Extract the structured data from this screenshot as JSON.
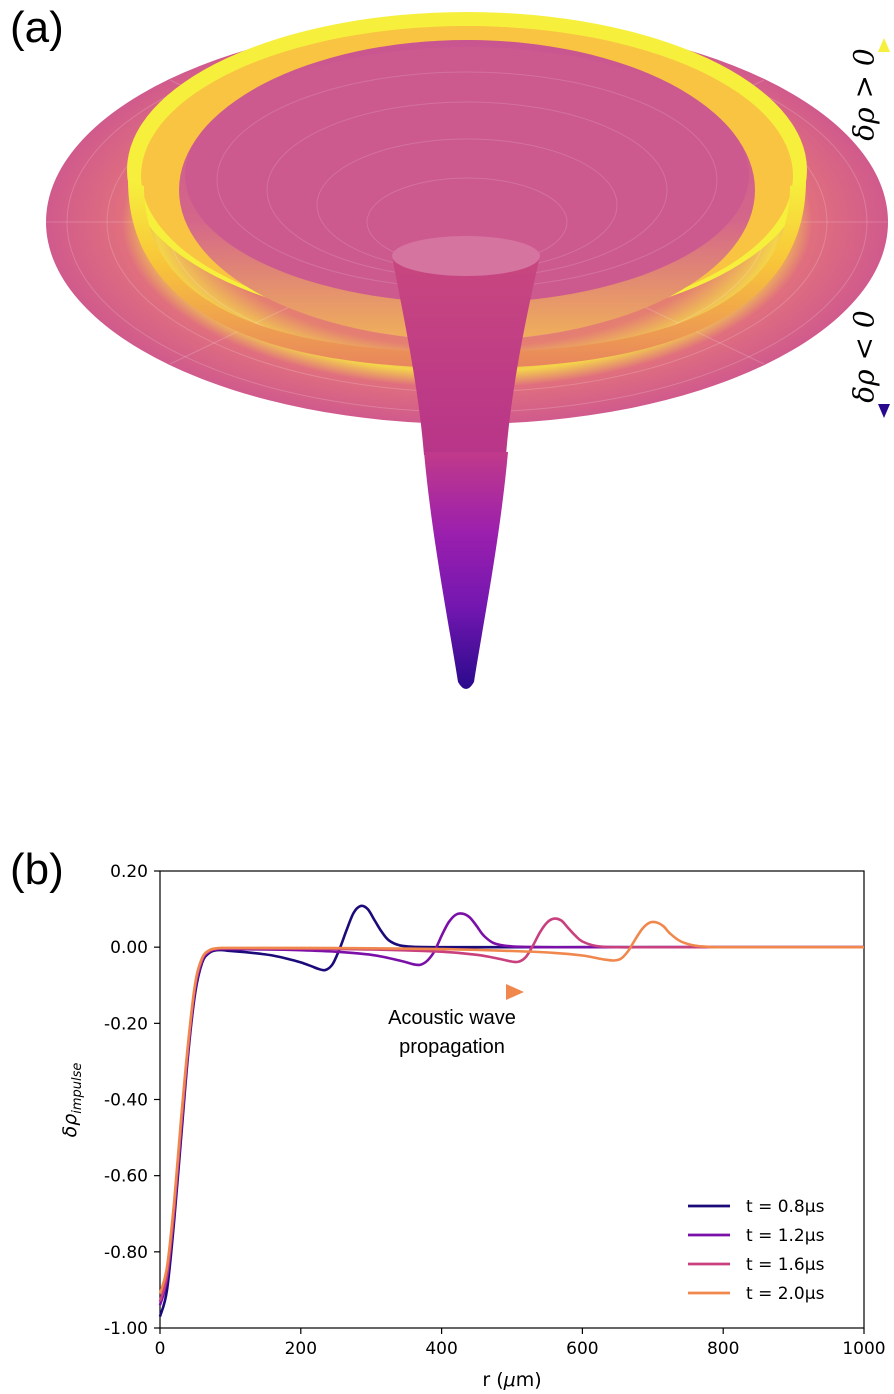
{
  "figure": {
    "panel_a": {
      "label": "(a)",
      "positive_label": "δρ > 0",
      "negative_label": "δρ < 0",
      "colors": {
        "rim_yellow": "#f6f03c",
        "surface_pink": "#d3628c",
        "deep_purple": "#8a16b0",
        "deep_blue": "#2a0a8c",
        "orange": "#f0922e"
      }
    },
    "panel_b": {
      "label": "(b)"
    }
  },
  "chart_data": {
    "type": "line",
    "title": "",
    "xlabel": "r (μm)",
    "ylabel": "δρimpulse",
    "xlim": [
      0,
      1000
    ],
    "ylim": [
      -1.0,
      0.2
    ],
    "x_ticks": [
      "0",
      "200",
      "400",
      "600",
      "800",
      "1000"
    ],
    "y_ticks": [
      "0.20",
      "0.00",
      "-0.20",
      "-0.40",
      "-0.60",
      "-0.80",
      "-1.00"
    ],
    "grid": false,
    "legend_position": "lower-right",
    "annotation": {
      "line1": "Acoustic wave",
      "line2": "propagation"
    },
    "series": [
      {
        "name": "t = 0.8μs",
        "color": "#1b0b7a",
        "x": [
          0,
          10,
          20,
          30,
          40,
          50,
          60,
          70,
          80,
          90,
          100,
          120,
          140,
          160,
          180,
          200,
          215,
          225,
          235,
          245,
          255,
          265,
          275,
          285,
          295,
          305,
          315,
          325,
          340,
          360,
          400,
          500,
          600,
          800,
          1000
        ],
        "y": [
          -0.97,
          -0.9,
          -0.72,
          -0.5,
          -0.28,
          -0.12,
          -0.04,
          -0.015,
          -0.008,
          -0.008,
          -0.01,
          -0.013,
          -0.017,
          -0.022,
          -0.03,
          -0.04,
          -0.05,
          -0.057,
          -0.06,
          -0.045,
          -0.005,
          0.045,
          0.09,
          0.108,
          0.1,
          0.07,
          0.04,
          0.018,
          0.005,
          0.001,
          0,
          0,
          0,
          0,
          0
        ]
      },
      {
        "name": "t = 1.2μs",
        "color": "#7b10a8",
        "x": [
          0,
          10,
          20,
          30,
          40,
          50,
          60,
          70,
          80,
          90,
          100,
          150,
          200,
          250,
          300,
          340,
          360,
          370,
          380,
          390,
          400,
          410,
          420,
          430,
          440,
          450,
          460,
          475,
          500,
          550,
          600,
          800,
          1000
        ],
        "y": [
          -0.94,
          -0.87,
          -0.7,
          -0.48,
          -0.27,
          -0.11,
          -0.035,
          -0.012,
          -0.006,
          -0.005,
          -0.005,
          -0.006,
          -0.008,
          -0.012,
          -0.02,
          -0.035,
          -0.045,
          -0.046,
          -0.035,
          -0.01,
          0.03,
          0.065,
          0.085,
          0.088,
          0.078,
          0.055,
          0.03,
          0.01,
          0.002,
          0,
          0,
          0,
          0
        ]
      },
      {
        "name": "t = 1.6μs",
        "color": "#c8407d",
        "x": [
          0,
          10,
          20,
          30,
          40,
          50,
          60,
          70,
          80,
          90,
          100,
          200,
          300,
          400,
          450,
          480,
          500,
          510,
          520,
          530,
          540,
          550,
          560,
          570,
          580,
          590,
          600,
          620,
          650,
          700,
          800,
          1000
        ],
        "y": [
          -0.93,
          -0.86,
          -0.69,
          -0.47,
          -0.26,
          -0.1,
          -0.03,
          -0.01,
          -0.004,
          -0.003,
          -0.003,
          -0.004,
          -0.006,
          -0.012,
          -0.02,
          -0.03,
          -0.038,
          -0.038,
          -0.025,
          0.005,
          0.04,
          0.065,
          0.075,
          0.07,
          0.05,
          0.03,
          0.015,
          0.003,
          0,
          0,
          0,
          0
        ]
      },
      {
        "name": "t = 2.0μs",
        "color": "#f0884e",
        "x": [
          0,
          10,
          20,
          30,
          40,
          50,
          60,
          70,
          80,
          90,
          100,
          200,
          300,
          400,
          500,
          560,
          600,
          630,
          645,
          655,
          665,
          675,
          685,
          695,
          705,
          715,
          725,
          740,
          760,
          780,
          800,
          1000
        ],
        "y": [
          -0.91,
          -0.84,
          -0.67,
          -0.45,
          -0.25,
          -0.095,
          -0.028,
          -0.008,
          -0.003,
          -0.002,
          -0.002,
          -0.002,
          -0.003,
          -0.005,
          -0.01,
          -0.015,
          -0.022,
          -0.032,
          -0.035,
          -0.03,
          -0.01,
          0.02,
          0.048,
          0.064,
          0.065,
          0.055,
          0.035,
          0.015,
          0.004,
          0.001,
          0,
          0
        ]
      }
    ]
  }
}
